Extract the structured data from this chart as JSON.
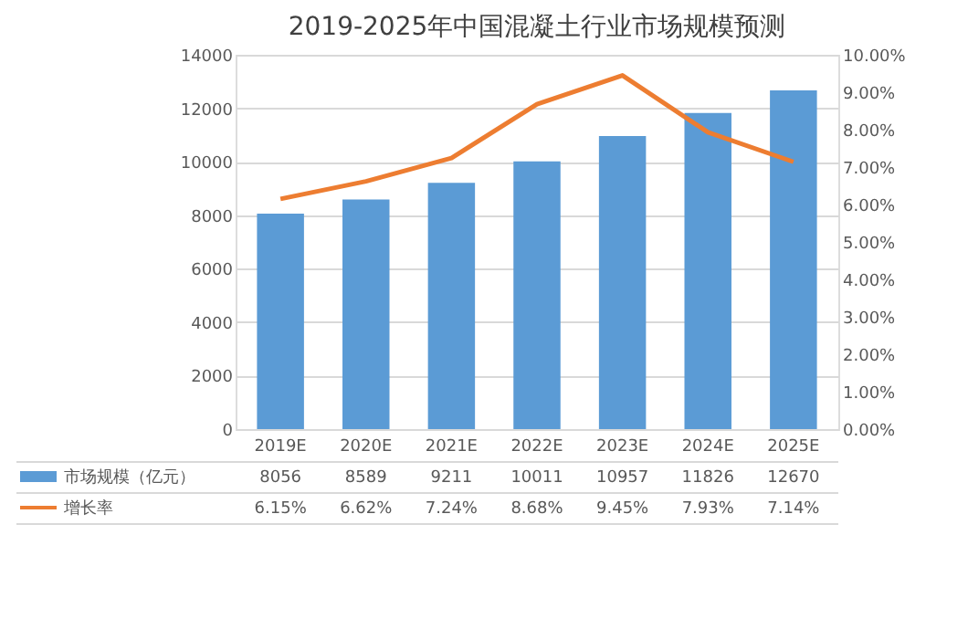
{
  "chart_data": {
    "type": "bar",
    "title": "2019-2025年中国混凝土行业市场规模预测",
    "categories": [
      "2019E",
      "2020E",
      "2021E",
      "2022E",
      "2023E",
      "2024E",
      "2025E"
    ],
    "series": [
      {
        "name": "市场规模（亿元）",
        "color": "#5b9bd5",
        "values": [
          8056,
          8589,
          9211,
          10011,
          10957,
          11826,
          12670
        ],
        "value_labels": [
          "8056",
          "8589",
          "9211",
          "10011",
          "10957",
          "11826",
          "12670"
        ]
      },
      {
        "name": "增长率",
        "type": "line",
        "axis": "y2",
        "color": "#ed7d31",
        "values": [
          6.15,
          6.62,
          7.24,
          8.68,
          9.45,
          7.93,
          7.14
        ],
        "value_labels": [
          "6.15%",
          "6.62%",
          "7.24%",
          "8.68%",
          "9.45%",
          "7.93%",
          "7.14%"
        ]
      }
    ],
    "ylim": [
      0,
      14000
    ],
    "yticks": [
      0,
      2000,
      4000,
      6000,
      8000,
      10000,
      12000,
      14000
    ],
    "y2lim": [
      0,
      10
    ],
    "y2ticks": [
      {
        "value": 0,
        "label": "0.00%"
      },
      {
        "value": 1,
        "label": "1.00%"
      },
      {
        "value": 2,
        "label": "2.00%"
      },
      {
        "value": 3,
        "label": "3.00%"
      },
      {
        "value": 4,
        "label": "4.00%"
      },
      {
        "value": 5,
        "label": "5.00%"
      },
      {
        "value": 6,
        "label": "6.00%"
      },
      {
        "value": 7,
        "label": "7.00%"
      },
      {
        "value": 8,
        "label": "8.00%"
      },
      {
        "value": 9,
        "label": "9.00%"
      },
      {
        "value": 10,
        "label": "10.00%"
      }
    ],
    "grid": "y",
    "legend": "bottom",
    "marker": "none",
    "line_style": "solid"
  }
}
